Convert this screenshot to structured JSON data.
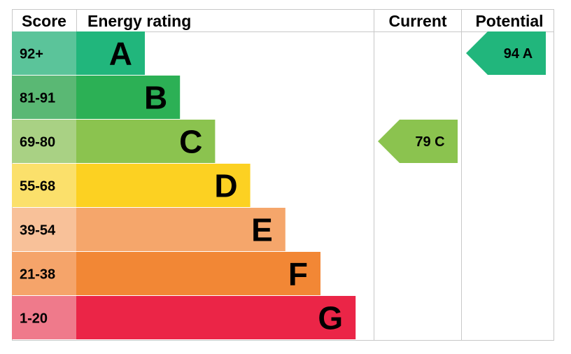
{
  "headers": {
    "score": "Score",
    "rating": "Energy rating",
    "current": "Current",
    "potential": "Potential"
  },
  "chart_data": {
    "type": "bar",
    "categories": [
      "A",
      "B",
      "C",
      "D",
      "E",
      "F",
      "G"
    ],
    "bands": [
      {
        "letter": "A",
        "range": "92+",
        "color": "#21b67c",
        "score_color": "#5bc49a"
      },
      {
        "letter": "B",
        "range": "81-91",
        "color": "#2cb055",
        "score_color": "#5ab874"
      },
      {
        "letter": "C",
        "range": "69-80",
        "color": "#8bc34f",
        "score_color": "#a9d184"
      },
      {
        "letter": "D",
        "range": "55-68",
        "color": "#fcd122",
        "score_color": "#fbe06b"
      },
      {
        "letter": "E",
        "range": "39-54",
        "color": "#f5a66b",
        "score_color": "#f8c199"
      },
      {
        "letter": "F",
        "range": "21-38",
        "color": "#f28735",
        "score_color": "#f5a46a"
      },
      {
        "letter": "G",
        "range": "1-20",
        "color": "#eb2547",
        "score_color": "#ef7a8b"
      }
    ],
    "current": {
      "value": 79,
      "band": "C",
      "label": "79  C",
      "color": "#8bc34f"
    },
    "potential": {
      "value": 94,
      "band": "A",
      "label": "94  A",
      "color": "#21b67c"
    }
  }
}
